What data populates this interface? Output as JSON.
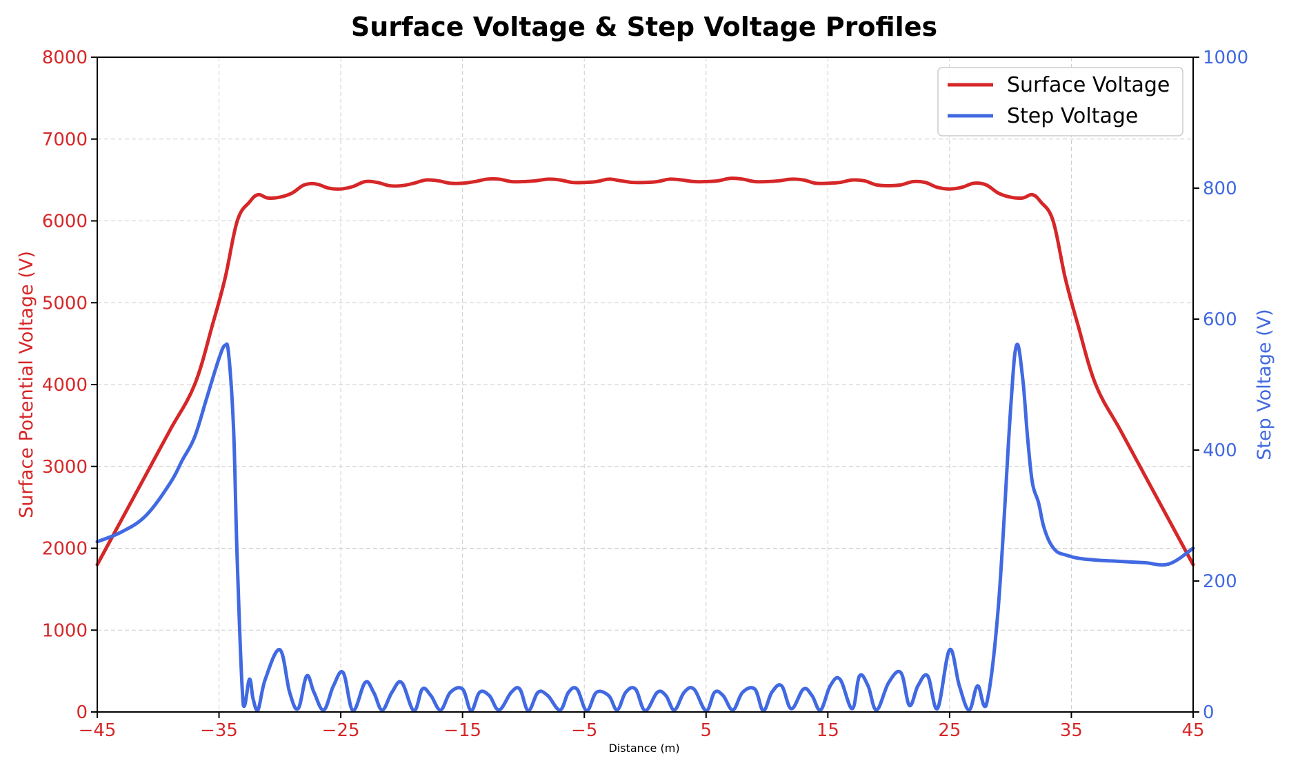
{
  "chart_data": {
    "type": "line",
    "title": "Surface Voltage & Step Voltage Profiles",
    "xlabel": "Distance (m)",
    "ylabel": "Surface Potential Voltage (V)",
    "y2label": "Step Voltage (V)",
    "xlim": [
      -45,
      45
    ],
    "ylim": [
      0,
      8000
    ],
    "y2lim": [
      0,
      1000
    ],
    "x_ticks": [
      "−45",
      "−35",
      "−25",
      "−15",
      "−5",
      "5",
      "15",
      "25",
      "35",
      "45"
    ],
    "x_tick_values": [
      -45,
      -35,
      -25,
      -15,
      -5,
      5,
      15,
      25,
      35,
      45
    ],
    "y_ticks": [
      "0",
      "1000",
      "2000",
      "3000",
      "4000",
      "5000",
      "6000",
      "7000",
      "8000"
    ],
    "y_tick_values": [
      0,
      1000,
      2000,
      3000,
      4000,
      5000,
      6000,
      7000,
      8000
    ],
    "y2_ticks": [
      "0",
      "200",
      "400",
      "600",
      "800",
      "1000"
    ],
    "y2_tick_values": [
      0,
      200,
      400,
      600,
      800,
      1000
    ],
    "grid": true,
    "legend_position": "top-right",
    "colors": {
      "surface": "#d62728",
      "step": "#4169e1",
      "axis_left": "#d62728",
      "axis_right": "#4169e1"
    },
    "series": [
      {
        "name": "Surface Voltage",
        "axis": "left",
        "x": [
          -45,
          -43,
          -41,
          -39,
          -37,
          -35.5,
          -34.5,
          -33.5,
          -32.5,
          -31.8,
          -31,
          -30,
          -29,
          -28,
          -27,
          -26,
          -25,
          -24,
          -23,
          -22,
          -21,
          -20,
          -19,
          -18,
          -17,
          -16,
          -15,
          -14,
          -13,
          -12,
          -11,
          -10,
          -9,
          -8,
          -7,
          -6,
          -5,
          -4,
          -3,
          -2,
          -1,
          0,
          1,
          2,
          3,
          4,
          5,
          6,
          7,
          8,
          9,
          10,
          11,
          12,
          13,
          14,
          15,
          16,
          17,
          18,
          19,
          20,
          21,
          22,
          23,
          24,
          25,
          26,
          27,
          28,
          29,
          30,
          31,
          31.8,
          32.5,
          33.5,
          34.5,
          35.5,
          37,
          39,
          41,
          43,
          45
        ],
        "y": [
          1800,
          2350,
          2900,
          3450,
          4000,
          4750,
          5300,
          6000,
          6230,
          6320,
          6280,
          6290,
          6340,
          6440,
          6450,
          6400,
          6390,
          6420,
          6480,
          6470,
          6430,
          6430,
          6460,
          6500,
          6490,
          6460,
          6460,
          6480,
          6510,
          6510,
          6480,
          6480,
          6490,
          6510,
          6500,
          6470,
          6470,
          6480,
          6510,
          6490,
          6470,
          6470,
          6480,
          6510,
          6500,
          6480,
          6480,
          6490,
          6520,
          6510,
          6480,
          6480,
          6490,
          6510,
          6500,
          6460,
          6460,
          6470,
          6500,
          6490,
          6440,
          6430,
          6440,
          6480,
          6470,
          6410,
          6390,
          6410,
          6460,
          6440,
          6340,
          6290,
          6280,
          6320,
          6230,
          6000,
          5300,
          4750,
          4000,
          3450,
          2900,
          2350,
          1800
        ]
      },
      {
        "name": "Step Voltage",
        "axis": "right",
        "x": [
          -45,
          -43,
          -41,
          -39,
          -38,
          -37,
          -36,
          -35,
          -34.5,
          -34.2,
          -33.8,
          -33.5,
          -33,
          -32.5,
          -32.2,
          -31.8,
          -31.2,
          -30,
          -29.2,
          -28.5,
          -27.8,
          -27.2,
          -26.4,
          -25.6,
          -24.8,
          -24,
          -23,
          -22.3,
          -21.6,
          -20.8,
          -20,
          -19,
          -18.3,
          -17.6,
          -16.8,
          -16,
          -15,
          -14.3,
          -13.6,
          -12.8,
          -12,
          -11,
          -10.3,
          -9.6,
          -8.8,
          -8,
          -7,
          -6.3,
          -5.6,
          -4.8,
          -4,
          -3,
          -2.3,
          -1.6,
          -0.8,
          0,
          1,
          1.7,
          2.4,
          3.2,
          4,
          5,
          5.7,
          6.4,
          7.2,
          8,
          9,
          9.7,
          10.4,
          11.2,
          12,
          13,
          13.7,
          14.4,
          15.2,
          16,
          17,
          17.6,
          18.3,
          19,
          20,
          21,
          21.7,
          22.4,
          23.2,
          24,
          25,
          25.8,
          26.6,
          27.3,
          28,
          29,
          30,
          30.5,
          31,
          31.4,
          31.8,
          32.3,
          32.7,
          33.2,
          33.8,
          34.5,
          35.5,
          37,
          39,
          41,
          43,
          45
        ],
        "y": [
          260,
          275,
          300,
          350,
          385,
          420,
          480,
          540,
          560,
          545,
          430,
          230,
          10,
          50,
          20,
          3,
          50,
          95,
          30,
          5,
          55,
          30,
          3,
          40,
          60,
          2,
          45,
          30,
          3,
          30,
          45,
          2,
          35,
          25,
          3,
          30,
          35,
          2,
          30,
          25,
          3,
          30,
          35,
          2,
          30,
          25,
          3,
          30,
          35,
          2,
          30,
          25,
          3,
          30,
          35,
          2,
          30,
          25,
          3,
          30,
          35,
          2,
          30,
          25,
          3,
          30,
          35,
          2,
          30,
          40,
          5,
          35,
          25,
          3,
          40,
          50,
          5,
          55,
          40,
          3,
          45,
          60,
          10,
          40,
          55,
          5,
          95,
          40,
          3,
          40,
          10,
          160,
          460,
          560,
          510,
          420,
          350,
          320,
          285,
          260,
          245,
          240,
          235,
          232,
          230,
          228,
          226,
          250
        ]
      }
    ]
  }
}
